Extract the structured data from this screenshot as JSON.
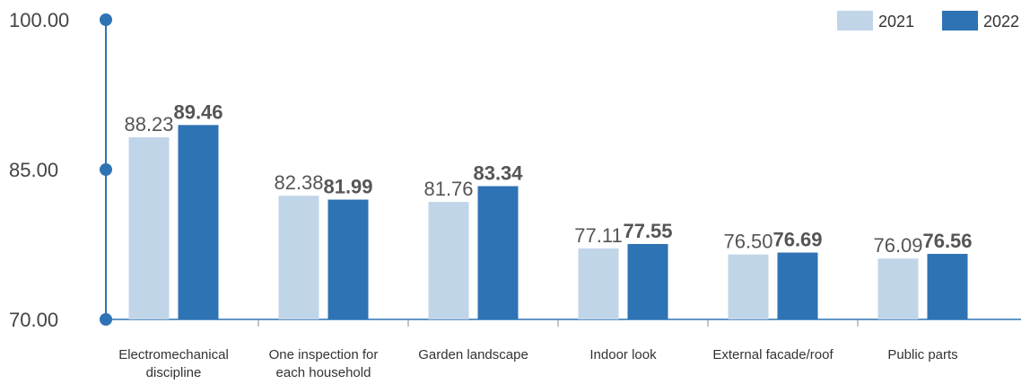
{
  "chart_data": {
    "type": "bar",
    "categories": [
      [
        "Electromechanical",
        "discipline"
      ],
      [
        "One inspection for",
        "each household"
      ],
      [
        "Garden landscape"
      ],
      [
        "Indoor look"
      ],
      [
        "External facade/roof"
      ],
      [
        "Public parts"
      ]
    ],
    "series": [
      {
        "name": "2021",
        "values": [
          88.23,
          82.38,
          81.76,
          77.11,
          76.5,
          76.09
        ],
        "color": "#c1d5e9",
        "label_style": "normal"
      },
      {
        "name": "2022",
        "values": [
          89.46,
          81.99,
          83.34,
          77.55,
          76.69,
          76.56
        ],
        "color": "#2e73b4",
        "label_style": "bold"
      }
    ],
    "data_labels": [
      [
        "88.23",
        "82.38",
        "81.76",
        "77.11",
        "76.50",
        "76.09"
      ],
      [
        "89.46",
        "81.99",
        "83.34",
        "77.55",
        "76.69",
        "76.56"
      ]
    ],
    "y_ticks": [
      "100.00",
      "85.00",
      "70.00"
    ],
    "ylim": [
      70,
      100
    ],
    "title": "",
    "xlabel": "",
    "ylabel": "",
    "legend": {
      "position": "top-right",
      "entries": [
        "2021",
        "2022"
      ]
    },
    "grid": false,
    "axis_color": "#2e73b4"
  }
}
